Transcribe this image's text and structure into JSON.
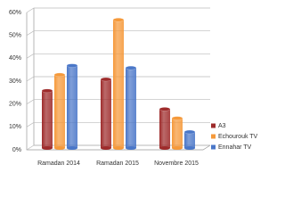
{
  "chart_data": {
    "type": "bar",
    "categories": [
      "Ramadan 2014",
      "Ramadan 2015",
      "Novembre 2015"
    ],
    "series": [
      {
        "name": "A3",
        "color": "#9e2b2b",
        "values": [
          25,
          30,
          17
        ]
      },
      {
        "name": "Echourouk TV",
        "color": "#f5993a",
        "values": [
          32,
          56,
          13
        ]
      },
      {
        "name": "Ennahar TV",
        "color": "#4a77c8",
        "values": [
          36,
          35,
          7
        ]
      }
    ],
    "ylim": [
      0,
      60
    ],
    "yticks": [
      {
        "value": 0,
        "label": "0%"
      },
      {
        "value": 10,
        "label": "10%"
      },
      {
        "value": 20,
        "label": "20%"
      },
      {
        "value": 30,
        "label": "30%"
      },
      {
        "value": 40,
        "label": "40%"
      },
      {
        "value": 50,
        "label": "50%"
      },
      {
        "value": 60,
        "label": "60%"
      }
    ],
    "grid": true,
    "legend": "right"
  }
}
